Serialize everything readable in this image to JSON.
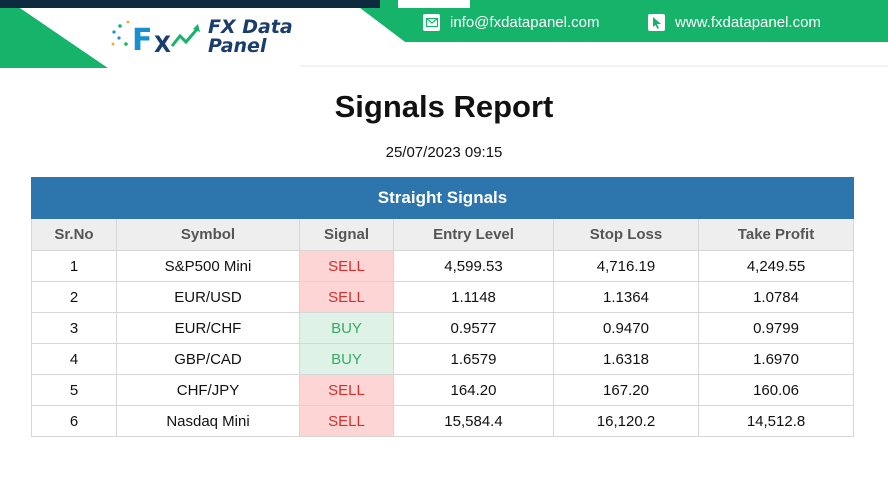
{
  "header": {
    "brand": {
      "line1": "FX Data",
      "line2": "Panel"
    },
    "email": "info@fxdatapanel.com",
    "website": "www.fxdatapanel.com",
    "icons": {
      "email": "envelope-icon",
      "website": "cursor-icon",
      "logo": "fx-data-panel-logo"
    },
    "colors": {
      "accent": "#16b36a",
      "dark": "#0d2a3f"
    }
  },
  "report": {
    "title": "Signals Report",
    "datetime": "25/07/2023 09:15",
    "section_title": "Straight Signals",
    "columns": [
      "Sr.No",
      "Symbol",
      "Signal",
      "Entry Level",
      "Stop Loss",
      "Take Profit"
    ],
    "rows": [
      {
        "sr": "1",
        "symbol": "S&P500 Mini",
        "signal": "SELL",
        "entry": "4,599.53",
        "stop": "4,716.19",
        "take": "4,249.55"
      },
      {
        "sr": "2",
        "symbol": "EUR/USD",
        "signal": "SELL",
        "entry": "1.1148",
        "stop": "1.1364",
        "take": "1.0784"
      },
      {
        "sr": "3",
        "symbol": "EUR/CHF",
        "signal": "BUY",
        "entry": "0.9577",
        "stop": "0.9470",
        "take": "0.9799"
      },
      {
        "sr": "4",
        "symbol": "GBP/CAD",
        "signal": "BUY",
        "entry": "1.6579",
        "stop": "1.6318",
        "take": "1.6970"
      },
      {
        "sr": "5",
        "symbol": "CHF/JPY",
        "signal": "SELL",
        "entry": "164.20",
        "stop": "167.20",
        "take": "160.06"
      },
      {
        "sr": "6",
        "symbol": "Nasdaq Mini",
        "signal": "SELL",
        "entry": "15,584.4",
        "stop": "16,120.2",
        "take": "14,512.8"
      }
    ],
    "colors": {
      "header": "#2c75ad",
      "sell_bg": "#fdd5d5",
      "sell_text": "#d0312d",
      "buy_bg": "#dff2e6",
      "buy_text": "#3aa86a"
    }
  }
}
